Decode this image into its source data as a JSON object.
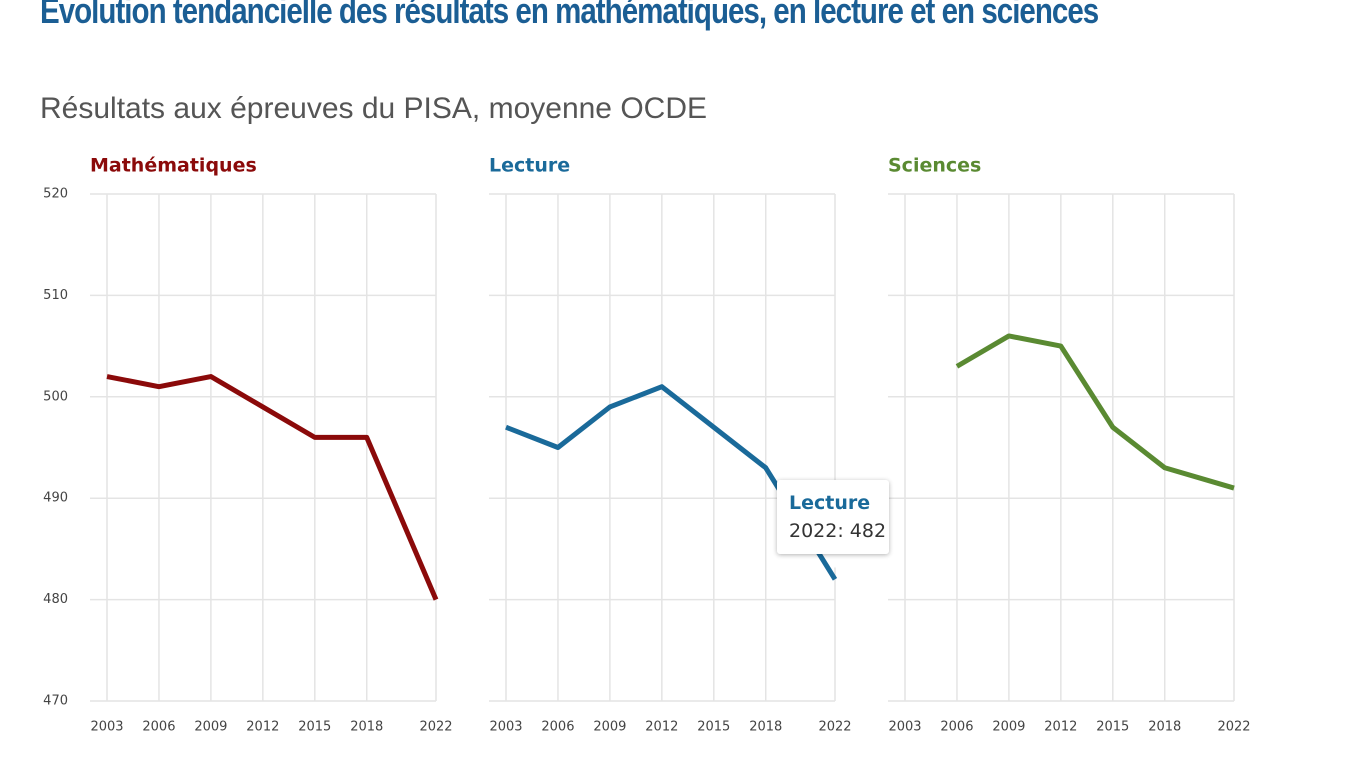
{
  "title": "Évolution tendancielle des résultats en mathématiques, en lecture et en sciences",
  "subtitle": "Résultats aux épreuves du PISA, moyenne OCDE",
  "tooltip": {
    "title": "Lecture",
    "text": "2022: 482"
  },
  "chart_data": [
    {
      "type": "line",
      "title": "Mathématiques",
      "color": "#8b0a0a",
      "x": [
        2003,
        2006,
        2009,
        2012,
        2015,
        2018,
        2022
      ],
      "values": [
        502,
        501,
        502,
        499,
        496,
        496,
        480
      ],
      "xlim": [
        2003,
        2022
      ],
      "xticks": [
        2003,
        2006,
        2009,
        2012,
        2015,
        2018,
        2022
      ],
      "ylim": [
        470,
        520
      ],
      "yticks": [
        470,
        480,
        490,
        500,
        510,
        520
      ],
      "grid": true
    },
    {
      "type": "line",
      "title": "Lecture",
      "color": "#1a6a9a",
      "x": [
        2003,
        2006,
        2009,
        2012,
        2015,
        2018,
        2022
      ],
      "values": [
        497,
        495,
        499,
        501,
        497,
        493,
        482
      ],
      "xlim": [
        2003,
        2022
      ],
      "xticks": [
        2003,
        2006,
        2009,
        2012,
        2015,
        2018,
        2022
      ],
      "ylim": [
        470,
        520
      ],
      "yticks": [
        470,
        480,
        490,
        500,
        510,
        520
      ],
      "grid": true
    },
    {
      "type": "line",
      "title": "Sciences",
      "color": "#5a8a32",
      "x": [
        2003,
        2006,
        2009,
        2012,
        2015,
        2018,
        2022
      ],
      "values": [
        null,
        503,
        506,
        505,
        497,
        493,
        491
      ],
      "xlim": [
        2003,
        2022
      ],
      "xticks": [
        2003,
        2006,
        2009,
        2012,
        2015,
        2018,
        2022
      ],
      "ylim": [
        470,
        520
      ],
      "yticks": [
        470,
        480,
        490,
        500,
        510,
        520
      ],
      "grid": true
    }
  ]
}
